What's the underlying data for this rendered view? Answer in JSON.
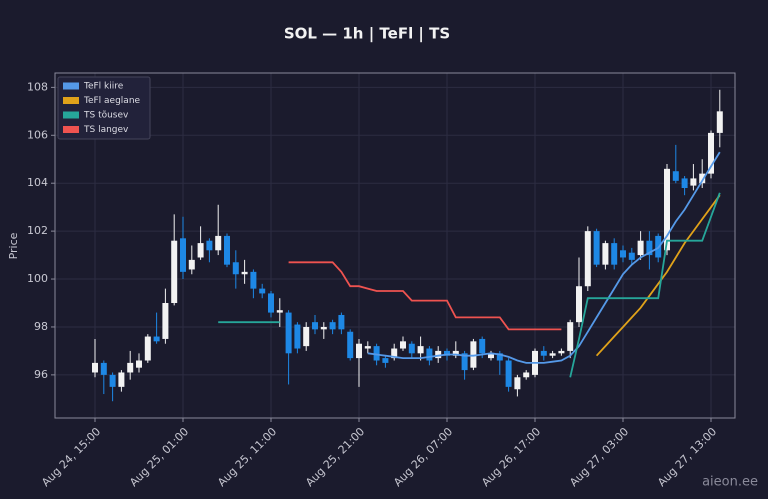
{
  "chart_data": {
    "type": "candlestick",
    "title": "SOL — 1h  |  TeFl  |  TS",
    "y_label": "Price",
    "watermark": "aieon.ee",
    "legend": "upper left",
    "grid": true,
    "up_color": "#f2f2f2",
    "down_color": "#1e88e5",
    "ylim": [
      94.2,
      108.6
    ],
    "yticks": [
      96,
      98,
      100,
      102,
      104,
      106,
      108
    ],
    "categories": [
      "Aug 24, 15:00",
      null,
      null,
      null,
      null,
      null,
      null,
      null,
      null,
      null,
      "Aug 25, 01:00",
      null,
      null,
      null,
      null,
      null,
      null,
      null,
      null,
      null,
      "Aug 25, 11:00",
      null,
      null,
      null,
      null,
      null,
      null,
      null,
      null,
      null,
      "Aug 25, 21:00",
      null,
      null,
      null,
      null,
      null,
      null,
      null,
      null,
      null,
      "Aug 26, 07:00",
      null,
      null,
      null,
      null,
      null,
      null,
      null,
      null,
      null,
      "Aug 26, 17:00",
      null,
      null,
      null,
      null,
      null,
      null,
      null,
      null,
      null,
      "Aug 27, 03:00",
      null,
      null,
      null,
      null,
      null,
      null,
      null,
      null,
      null,
      "Aug 27, 13:00",
      null
    ],
    "open": [
      96.1,
      96.5,
      96.0,
      95.5,
      96.1,
      96.3,
      96.6,
      97.6,
      97.5,
      99.0,
      101.7,
      100.4,
      100.9,
      101.6,
      101.2,
      101.8,
      100.7,
      100.2,
      100.3,
      99.6,
      99.4,
      98.6,
      98.6,
      98.1,
      97.2,
      98.2,
      97.9,
      98.2,
      98.5,
      97.8,
      96.7,
      97.1,
      97.2,
      96.7,
      96.7,
      97.1,
      97.3,
      96.9,
      97.1,
      96.7,
      97.0,
      96.8,
      96.9,
      96.3,
      97.5,
      96.7,
      96.9,
      96.6,
      95.4,
      95.9,
      96.0,
      97.0,
      96.8,
      96.9,
      97.0,
      98.2,
      99.7,
      102.0,
      100.6,
      101.5,
      101.2,
      101.1,
      101.0,
      101.6,
      101.8,
      101.2,
      104.5,
      104.2,
      103.9,
      104.0,
      104.4,
      106.1
    ],
    "high": [
      97.5,
      96.6,
      96.1,
      96.2,
      97.0,
      96.9,
      97.7,
      98.6,
      99.6,
      102.7,
      102.6,
      101.4,
      102.2,
      101.7,
      103.1,
      101.9,
      101.2,
      100.8,
      100.4,
      99.8,
      99.5,
      99.2,
      98.7,
      98.2,
      98.2,
      98.5,
      98.2,
      98.3,
      98.6,
      97.9,
      97.5,
      97.4,
      97.3,
      96.8,
      97.3,
      97.6,
      97.4,
      97.6,
      97.2,
      97.2,
      97.1,
      97.4,
      97.0,
      97.5,
      97.6,
      97.0,
      97.0,
      96.7,
      96.0,
      96.2,
      97.1,
      97.2,
      97.0,
      97.1,
      98.3,
      100.9,
      102.2,
      102.1,
      101.6,
      101.7,
      101.4,
      101.3,
      102.0,
      102.0,
      101.9,
      104.8,
      105.6,
      104.3,
      104.8,
      105.0,
      106.2,
      107.9
    ],
    "low": [
      95.9,
      95.2,
      94.9,
      95.3,
      95.8,
      96.1,
      96.5,
      97.3,
      97.3,
      98.9,
      100.0,
      100.2,
      100.8,
      100.7,
      101.0,
      100.5,
      99.6,
      99.8,
      99.2,
      99.2,
      98.4,
      98.0,
      95.6,
      96.9,
      97.0,
      97.7,
      97.5,
      97.7,
      97.7,
      96.6,
      95.5,
      96.9,
      96.4,
      96.3,
      96.6,
      97.0,
      96.7,
      96.6,
      96.4,
      96.5,
      96.6,
      96.7,
      95.8,
      96.2,
      96.7,
      96.6,
      96.0,
      95.3,
      95.1,
      95.8,
      95.9,
      96.6,
      96.7,
      96.8,
      96.7,
      98.0,
      99.5,
      100.5,
      100.4,
      100.4,
      100.7,
      100.6,
      100.8,
      100.4,
      100.7,
      101.0,
      104.0,
      103.5,
      103.7,
      103.8,
      104.2,
      105.5
    ],
    "close": [
      96.5,
      96.0,
      95.5,
      96.1,
      96.5,
      96.6,
      97.6,
      97.4,
      99.0,
      101.6,
      100.3,
      100.8,
      101.5,
      101.2,
      101.8,
      100.6,
      100.2,
      100.3,
      99.6,
      99.4,
      98.6,
      98.7,
      96.9,
      97.1,
      98.0,
      97.9,
      98.0,
      97.9,
      97.9,
      96.7,
      97.3,
      97.2,
      96.6,
      96.5,
      97.1,
      97.4,
      96.9,
      97.2,
      96.6,
      97.0,
      96.8,
      97.0,
      96.2,
      97.4,
      96.9,
      96.9,
      96.6,
      95.5,
      95.9,
      96.1,
      97.0,
      96.8,
      96.9,
      97.0,
      98.2,
      99.7,
      102.0,
      100.6,
      101.5,
      100.6,
      100.9,
      100.8,
      101.6,
      101.0,
      100.9,
      104.6,
      104.1,
      103.8,
      104.2,
      104.4,
      106.1,
      107.0
    ],
    "series": [
      {
        "name": "TeFl kiire",
        "color": "#5599e8",
        "values": [
          null,
          null,
          null,
          null,
          null,
          null,
          null,
          null,
          null,
          null,
          null,
          null,
          null,
          null,
          null,
          null,
          null,
          null,
          null,
          null,
          null,
          null,
          null,
          null,
          null,
          null,
          null,
          null,
          null,
          null,
          null,
          96.9,
          96.85,
          96.8,
          96.75,
          96.7,
          96.7,
          96.7,
          96.75,
          96.8,
          96.85,
          96.85,
          96.8,
          96.8,
          96.85,
          96.9,
          96.85,
          96.75,
          96.6,
          96.5,
          96.5,
          96.5,
          96.55,
          96.6,
          96.8,
          97.2,
          97.8,
          98.4,
          99.0,
          99.6,
          100.2,
          100.6,
          100.9,
          101.1,
          101.3,
          101.8,
          102.4,
          102.9,
          103.5,
          104.1,
          104.7,
          105.3
        ]
      },
      {
        "name": "TeFl aeglane",
        "color": "#e0a21a",
        "values": [
          null,
          null,
          null,
          null,
          null,
          null,
          null,
          null,
          null,
          null,
          null,
          null,
          null,
          null,
          null,
          null,
          null,
          null,
          null,
          null,
          null,
          null,
          null,
          null,
          null,
          null,
          null,
          null,
          null,
          null,
          null,
          null,
          null,
          null,
          null,
          null,
          null,
          null,
          null,
          null,
          null,
          null,
          null,
          null,
          null,
          null,
          null,
          null,
          null,
          null,
          null,
          null,
          null,
          null,
          null,
          null,
          null,
          96.8,
          97.2,
          97.6,
          98.0,
          98.4,
          98.8,
          99.3,
          99.8,
          100.3,
          100.9,
          101.5,
          102.0,
          102.5,
          103.0,
          103.5
        ]
      },
      {
        "name": "TS tõusev",
        "color": "#26a69a",
        "values": [
          null,
          null,
          null,
          null,
          null,
          null,
          null,
          null,
          null,
          null,
          null,
          null,
          null,
          null,
          98.2,
          98.2,
          98.2,
          98.2,
          98.2,
          98.2,
          98.2,
          98.2,
          null,
          null,
          null,
          null,
          null,
          null,
          null,
          null,
          null,
          null,
          null,
          null,
          null,
          null,
          null,
          null,
          null,
          null,
          null,
          null,
          null,
          null,
          null,
          null,
          null,
          null,
          null,
          null,
          null,
          null,
          null,
          null,
          95.9,
          97.5,
          99.2,
          99.2,
          99.2,
          99.2,
          99.2,
          99.2,
          99.2,
          99.2,
          99.2,
          101.6,
          101.6,
          101.6,
          101.6,
          101.6,
          102.6,
          103.6
        ]
      },
      {
        "name": "TS langev",
        "color": "#ef5350",
        "values": [
          null,
          null,
          null,
          null,
          null,
          null,
          null,
          null,
          null,
          null,
          null,
          null,
          null,
          null,
          null,
          null,
          null,
          null,
          null,
          null,
          null,
          null,
          100.7,
          100.7,
          100.7,
          100.7,
          100.7,
          100.7,
          100.3,
          99.7,
          99.7,
          99.6,
          99.5,
          99.5,
          99.5,
          99.5,
          99.1,
          99.1,
          99.1,
          99.1,
          99.1,
          98.4,
          98.4,
          98.4,
          98.4,
          98.4,
          98.4,
          97.9,
          97.9,
          97.9,
          97.9,
          97.9,
          97.9,
          97.9,
          null,
          null,
          null,
          null,
          null,
          null,
          null,
          null,
          null,
          null,
          null,
          null,
          null,
          null,
          null,
          null,
          null,
          null
        ]
      }
    ]
  }
}
